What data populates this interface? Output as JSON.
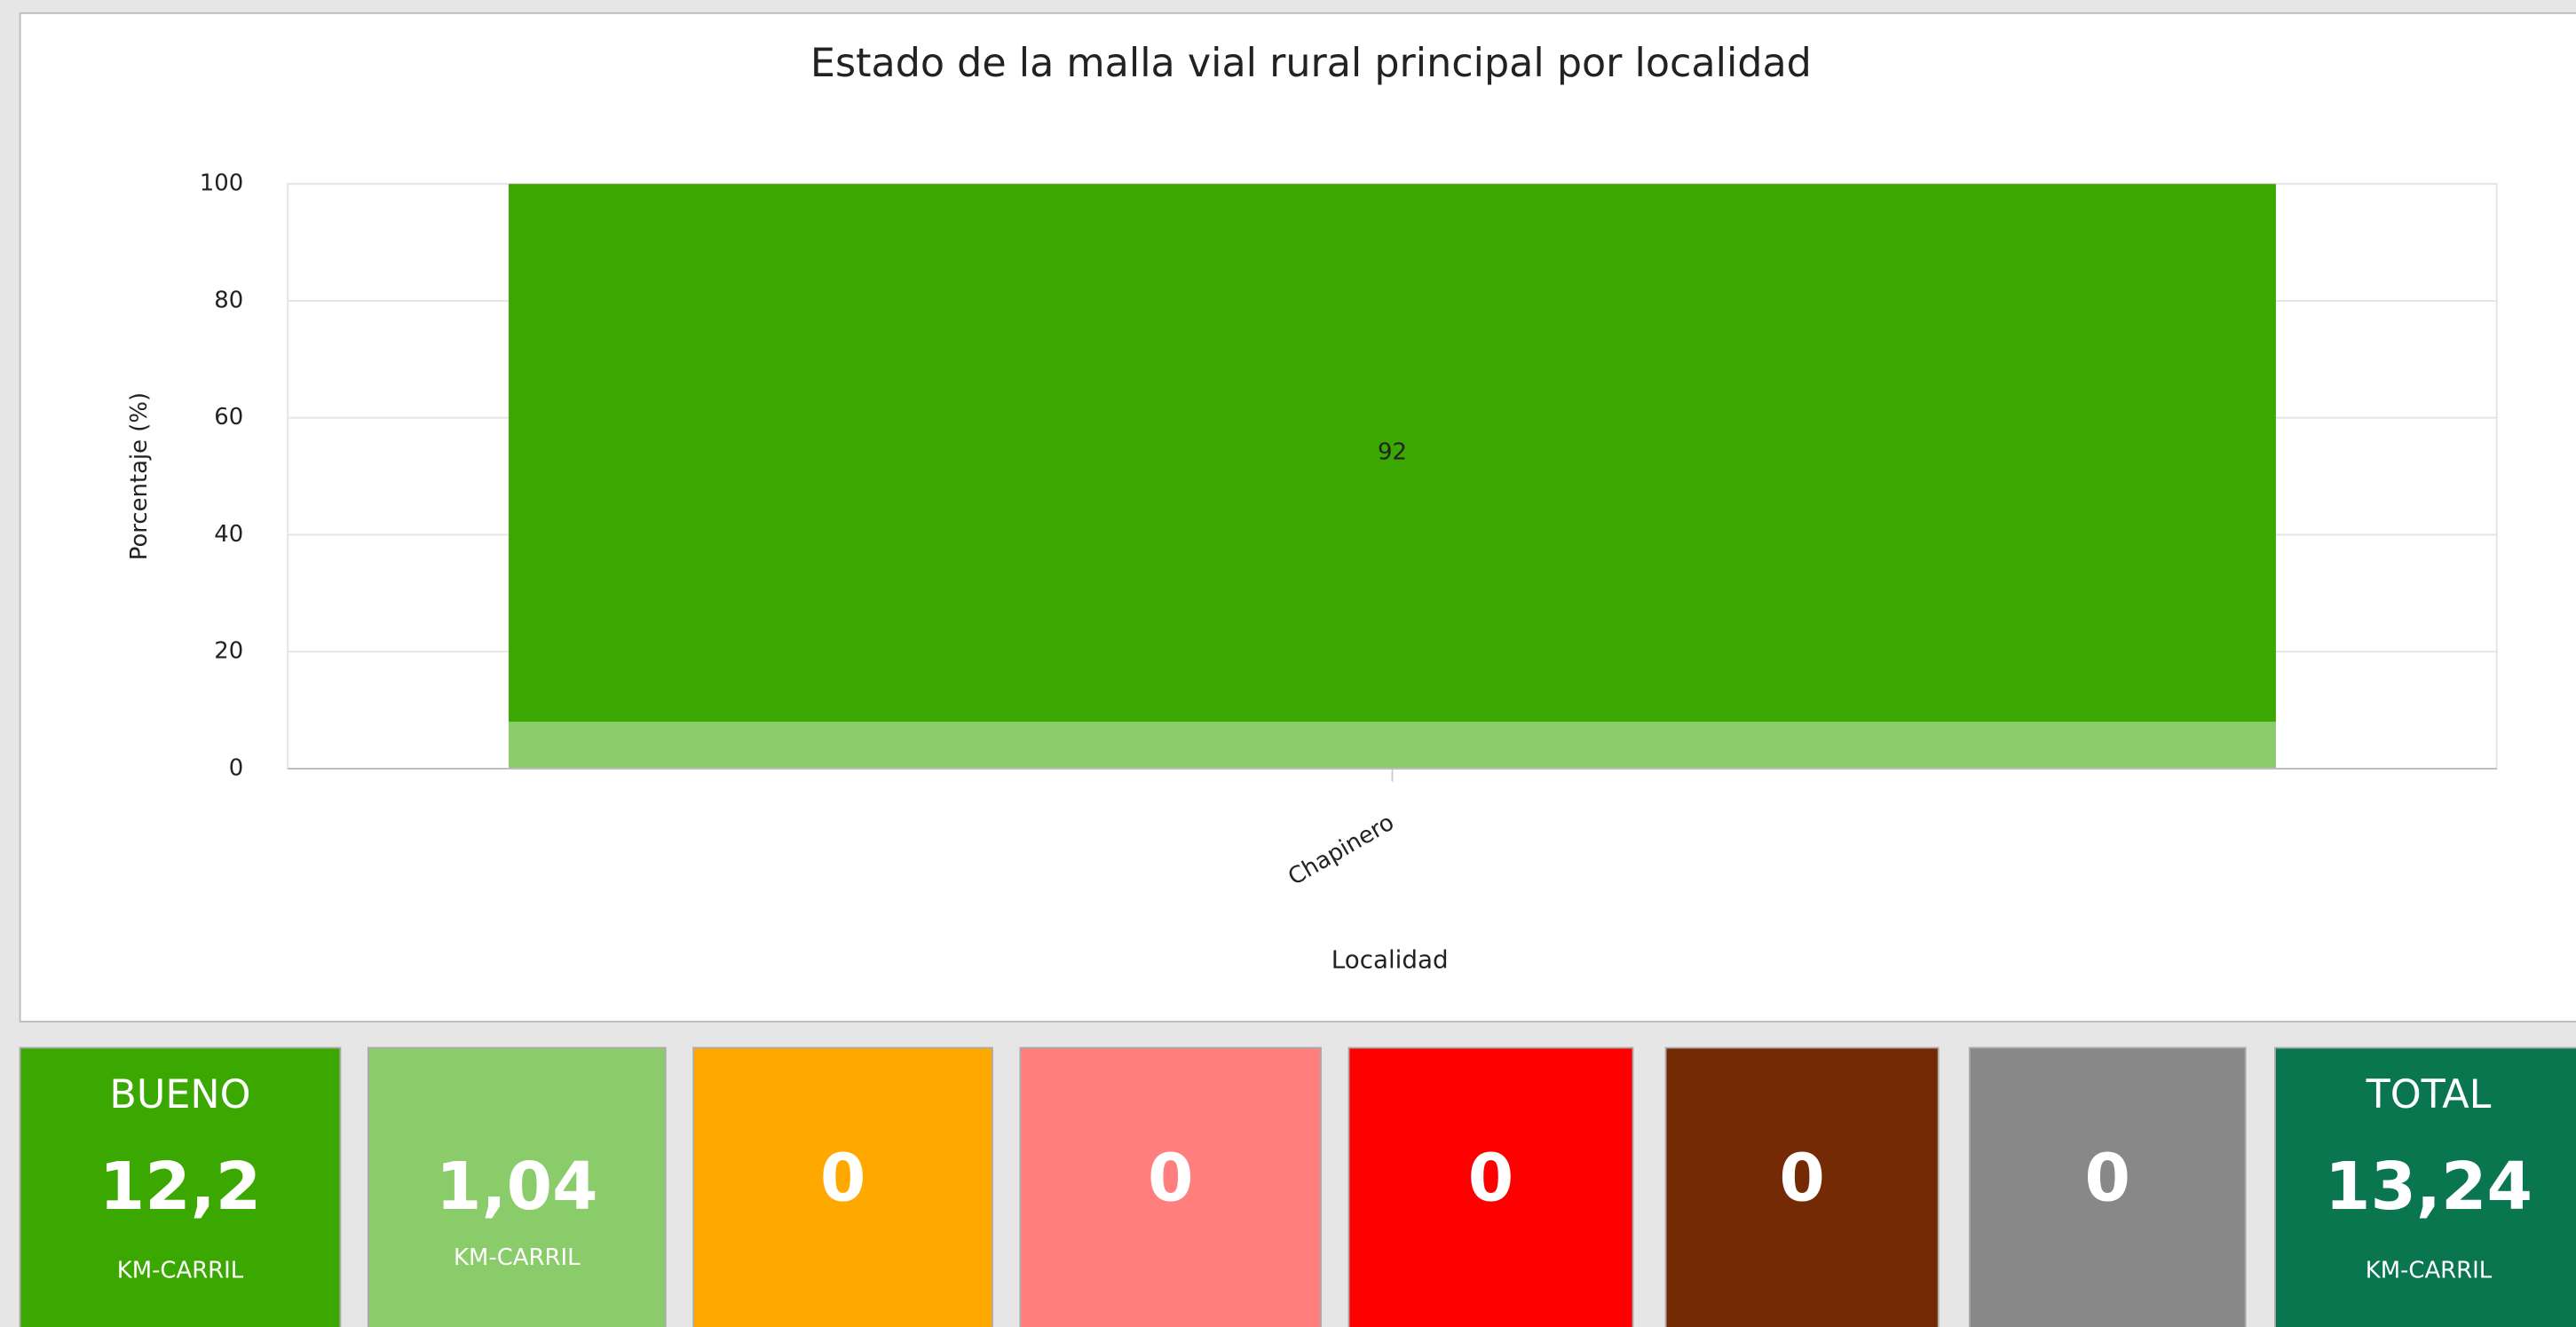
{
  "chart_data": {
    "type": "stacked_bar",
    "title": "Estado de la malla vial rural principal por localidad",
    "y_label": "Porcentaje (%)",
    "x_label": "Localidad",
    "categories": [
      "Chapinero"
    ],
    "series": [
      {
        "color": "#8acb6a",
        "values": [
          8
        ]
      },
      {
        "color": "#3aa800",
        "values": [
          92
        ],
        "show_labels": true
      }
    ],
    "ylim": [
      0,
      100
    ],
    "yticks": [
      0,
      20,
      40,
      60,
      80,
      100
    ],
    "grid": true
  },
  "cards": [
    {
      "title": "BUENO",
      "value": "12,2",
      "unit": "KM-CARRIL",
      "color": "#3aa800"
    },
    {
      "value": "1,04",
      "unit": "KM-CARRIL",
      "color": "#8acb6a"
    },
    {
      "value": "0",
      "color": "#ffa800"
    },
    {
      "value": "0",
      "color": "#ff7f7f"
    },
    {
      "value": "0",
      "color": "#ff0000"
    },
    {
      "value": "0",
      "color": "#742a04"
    },
    {
      "value": "0",
      "color": "#888888"
    },
    {
      "title": "TOTAL",
      "value": "13,24",
      "unit": "KM-CARRIL",
      "color": "#0a7650"
    }
  ]
}
